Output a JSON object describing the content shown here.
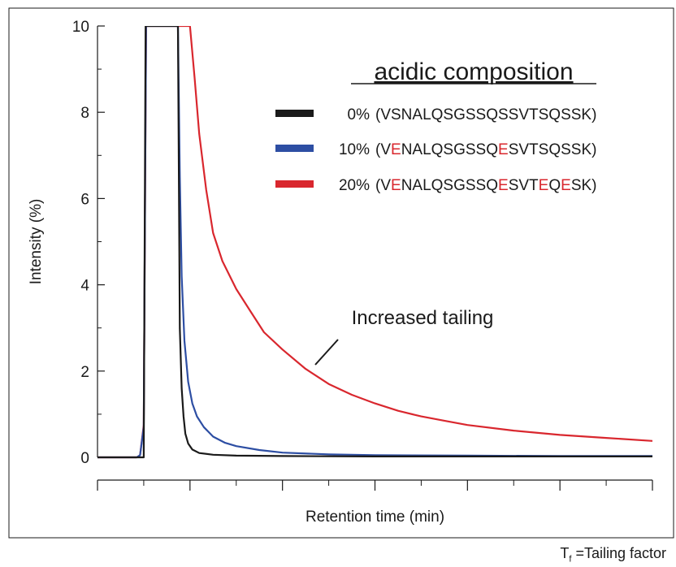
{
  "chart_data": {
    "type": "line",
    "ylabel": "Intensity (%)",
    "xlabel": "Retention time (min)",
    "ylim": [
      0,
      10
    ],
    "xlim": [
      0,
      12
    ],
    "yticks": [
      "0",
      "2",
      "4",
      "6",
      "8",
      "10"
    ],
    "y_minor_step": 1,
    "x_major_ticks": [
      0,
      2,
      4,
      6,
      8,
      10,
      12
    ],
    "x_minor_ticks": [
      1,
      3,
      5,
      7,
      9,
      11
    ],
    "grid": false,
    "legend_title": "acidic composition",
    "legend_placement": "top-right",
    "annotation": "Increased tailing",
    "series": [
      {
        "name": "0% (VSNALQSGSSQSSVTSQSSK)",
        "pct": "0%",
        "seq_parts": [
          "(VSNALQSGSSQSSVTSQSSK)"
        ],
        "color": "#1a1a1a",
        "x": [
          0,
          0.98,
          1.0,
          1.04,
          1.74,
          1.78,
          1.82,
          1.86,
          1.9,
          1.96,
          2.05,
          2.2,
          2.5,
          3.0,
          4.0,
          6.0,
          8.0,
          10.0,
          12.0
        ],
        "y": [
          0,
          0,
          0,
          10,
          10,
          3.0,
          1.6,
          0.95,
          0.55,
          0.32,
          0.18,
          0.1,
          0.06,
          0.04,
          0.03,
          0.02,
          0.02,
          0.02,
          0.02
        ]
      },
      {
        "name": "10% (VENALQSGSSQESVTSQSSK)",
        "pct": "10%",
        "seq_parts": [
          "(V",
          "E",
          "NALQSGSSQ",
          "E",
          "SVTSQSSK)"
        ],
        "color": "#2d4ea3",
        "x": [
          0,
          0.85,
          0.92,
          1.0,
          1.05,
          1.74,
          1.78,
          1.82,
          1.88,
          1.96,
          2.05,
          2.15,
          2.3,
          2.5,
          2.75,
          3.0,
          3.5,
          4.0,
          5.0,
          6.0,
          8.0,
          10.0,
          12.0
        ],
        "y": [
          0,
          0,
          0.05,
          0.7,
          10,
          10,
          6.5,
          4.2,
          2.7,
          1.75,
          1.25,
          0.95,
          0.7,
          0.48,
          0.34,
          0.26,
          0.17,
          0.11,
          0.07,
          0.05,
          0.04,
          0.03,
          0.03
        ]
      },
      {
        "name": "20% (VENALQSGSSQESVTEQESK)",
        "pct": "20%",
        "seq_parts": [
          "(V",
          "E",
          "NALQSGSSQ",
          "E",
          "SVT",
          "E",
          "Q",
          "E",
          "SK)"
        ],
        "color": "#d9272e",
        "x": [
          0,
          0.85,
          0.92,
          1.0,
          1.05,
          2.0,
          2.1,
          2.2,
          2.35,
          2.5,
          2.7,
          3.0,
          3.3,
          3.6,
          4.0,
          4.5,
          5.0,
          5.5,
          6.0,
          6.5,
          7.0,
          7.5,
          8.0,
          9.0,
          10.0,
          11.0,
          12.0
        ],
        "y": [
          0,
          0,
          0.05,
          0.75,
          10,
          10,
          8.8,
          7.5,
          6.2,
          5.2,
          4.55,
          3.9,
          3.4,
          2.9,
          2.5,
          2.05,
          1.7,
          1.45,
          1.25,
          1.08,
          0.95,
          0.85,
          0.75,
          0.62,
          0.52,
          0.45,
          0.38
        ]
      }
    ]
  },
  "footnote": {
    "symbol": "T",
    "subscript": "f",
    "text": " =Tailing factor"
  }
}
